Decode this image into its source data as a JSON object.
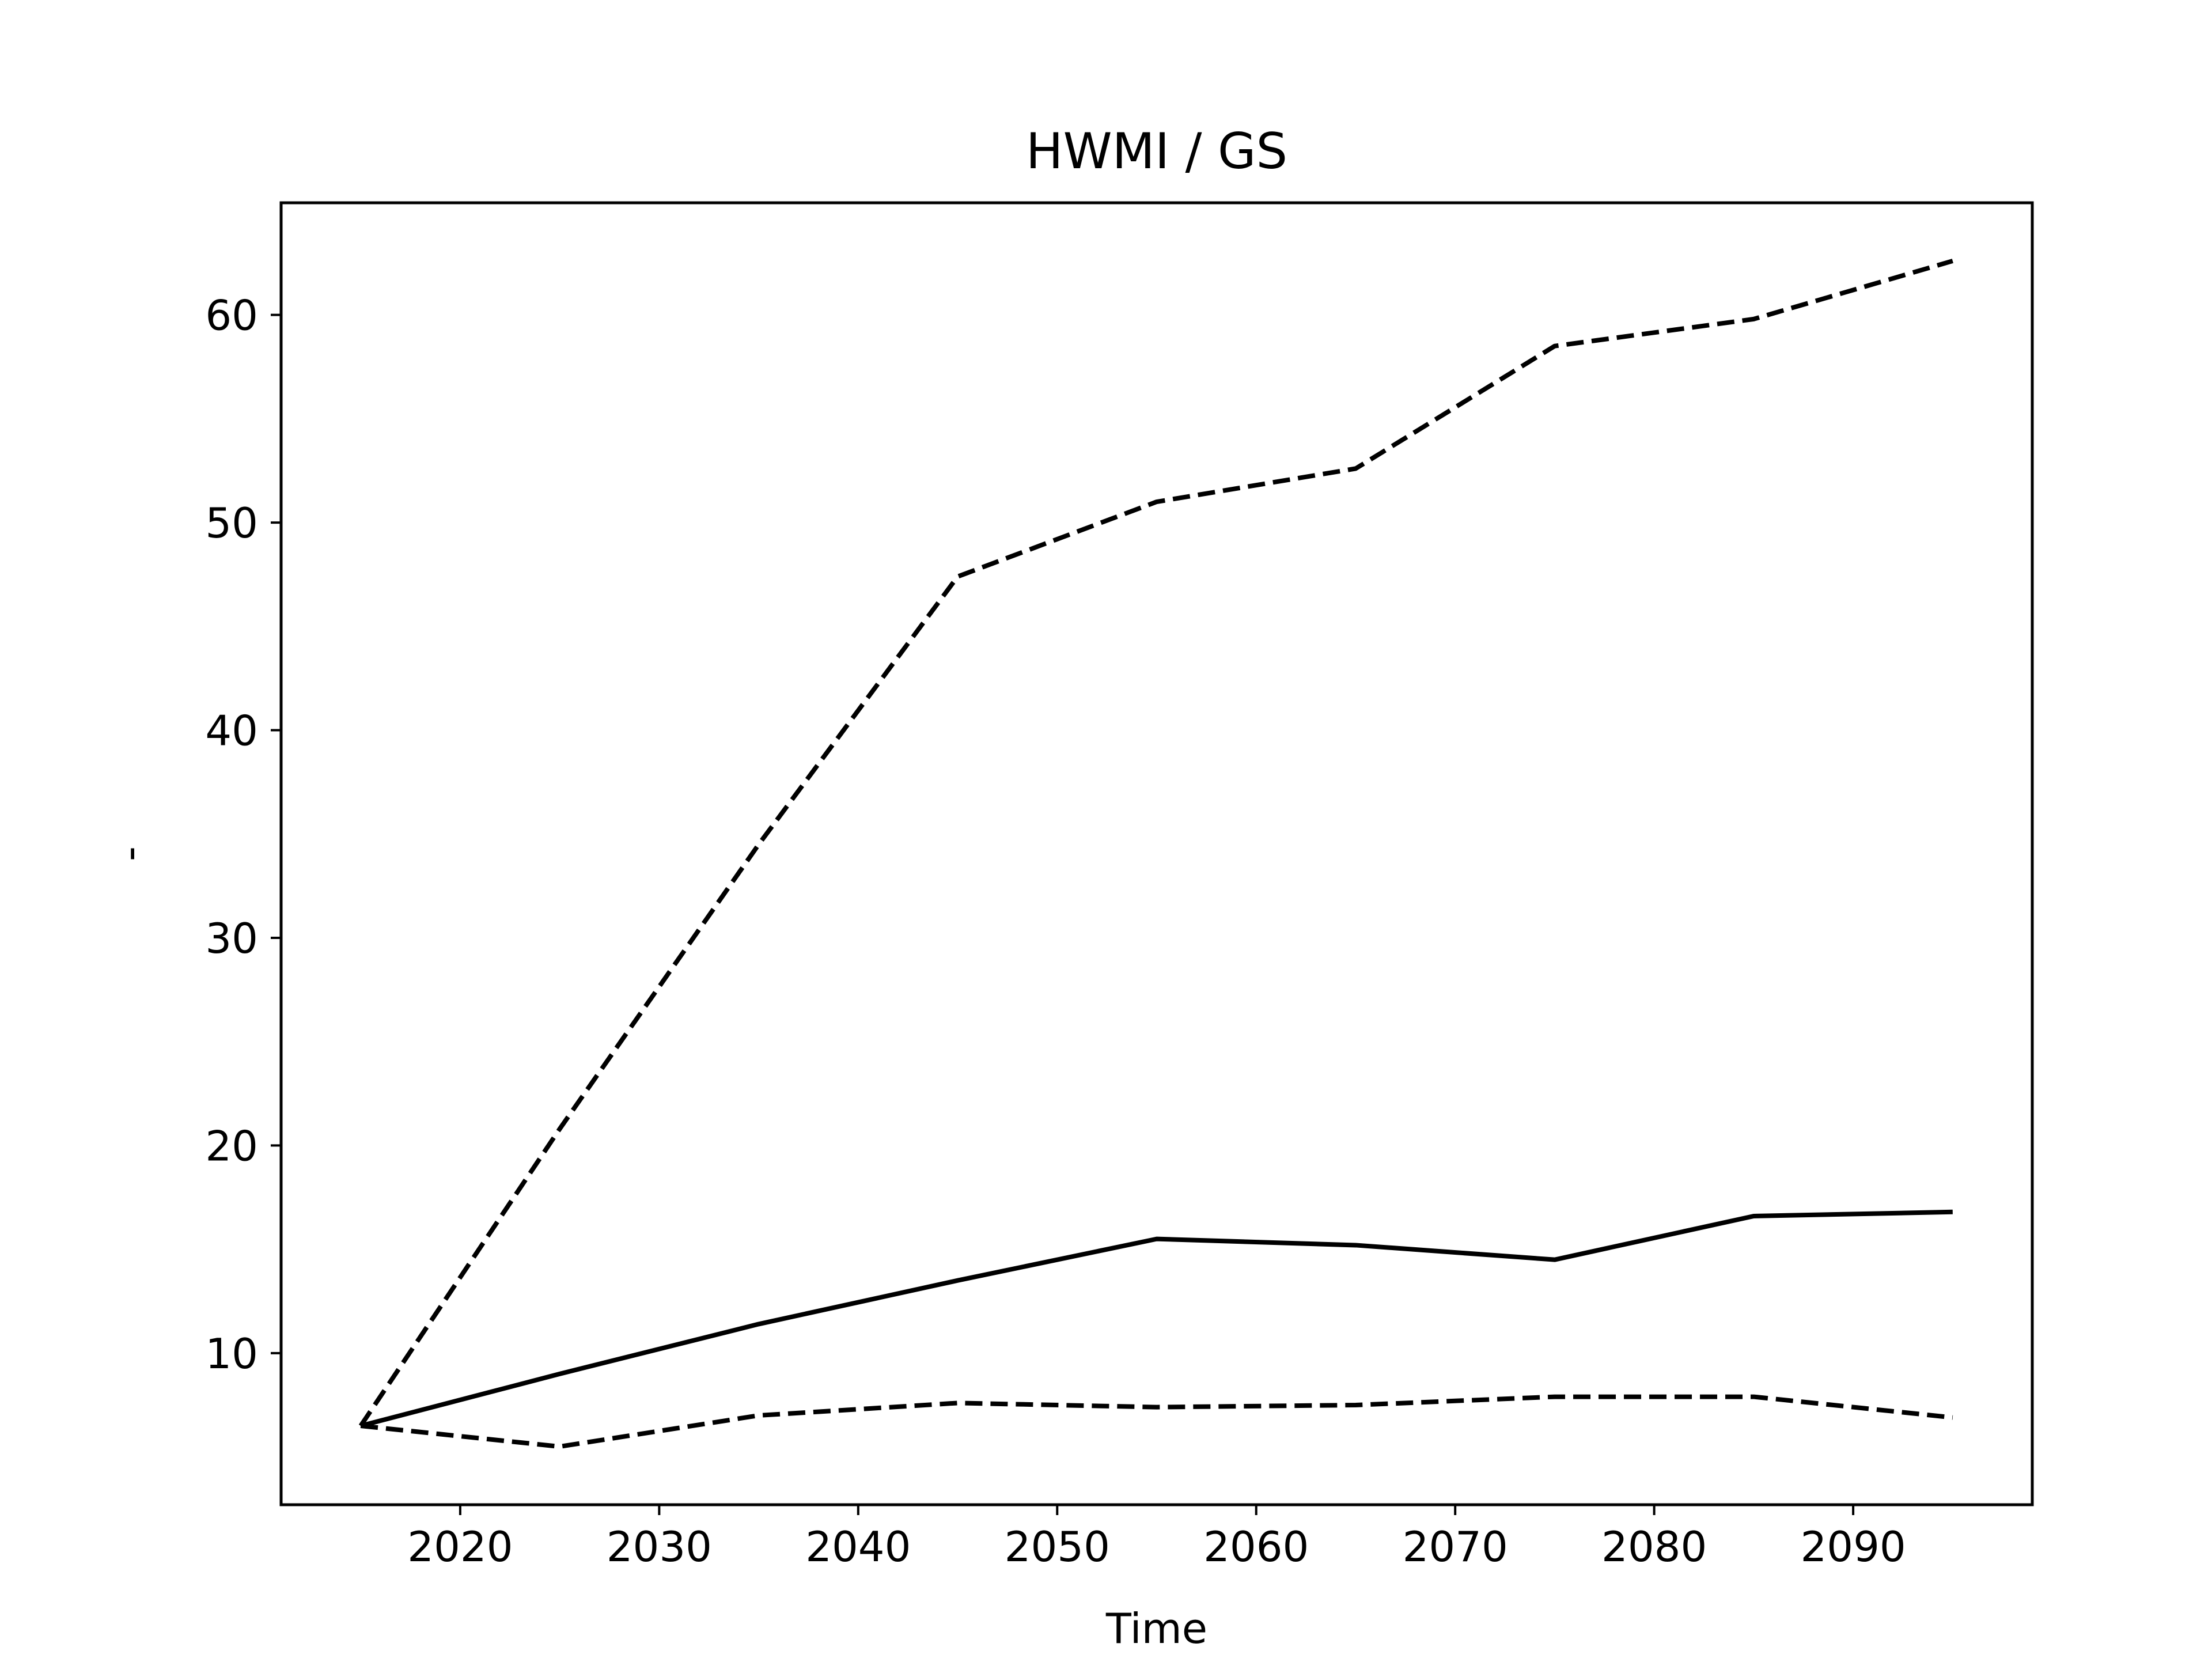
{
  "chart_data": {
    "type": "line",
    "title": "HWMI / GS",
    "xlabel": "Time",
    "ylabel": "-",
    "xlim": [
      2011,
      2099
    ],
    "ylim": [
      2.7,
      65.4
    ],
    "x_ticks": [
      2020,
      2030,
      2040,
      2050,
      2060,
      2070,
      2080,
      2090
    ],
    "y_ticks": [
      10,
      20,
      30,
      40,
      50,
      60
    ],
    "grid": false,
    "legend": "none",
    "x": [
      2015,
      2025,
      2035,
      2045,
      2055,
      2065,
      2075,
      2085,
      2095
    ],
    "series": [
      {
        "style": "solid",
        "color": "#000000",
        "values": [
          6.5,
          9.0,
          11.4,
          13.5,
          15.5,
          15.2,
          14.5,
          16.6,
          16.8
        ]
      },
      {
        "style": "dashed",
        "color": "#000000",
        "values": [
          6.5,
          20.8,
          34.5,
          47.4,
          51.0,
          52.6,
          58.5,
          59.8,
          62.6
        ]
      },
      {
        "style": "dashed",
        "color": "#000000",
        "values": [
          6.5,
          5.5,
          7.0,
          7.6,
          7.4,
          7.5,
          7.9,
          7.9,
          6.9
        ]
      }
    ]
  }
}
